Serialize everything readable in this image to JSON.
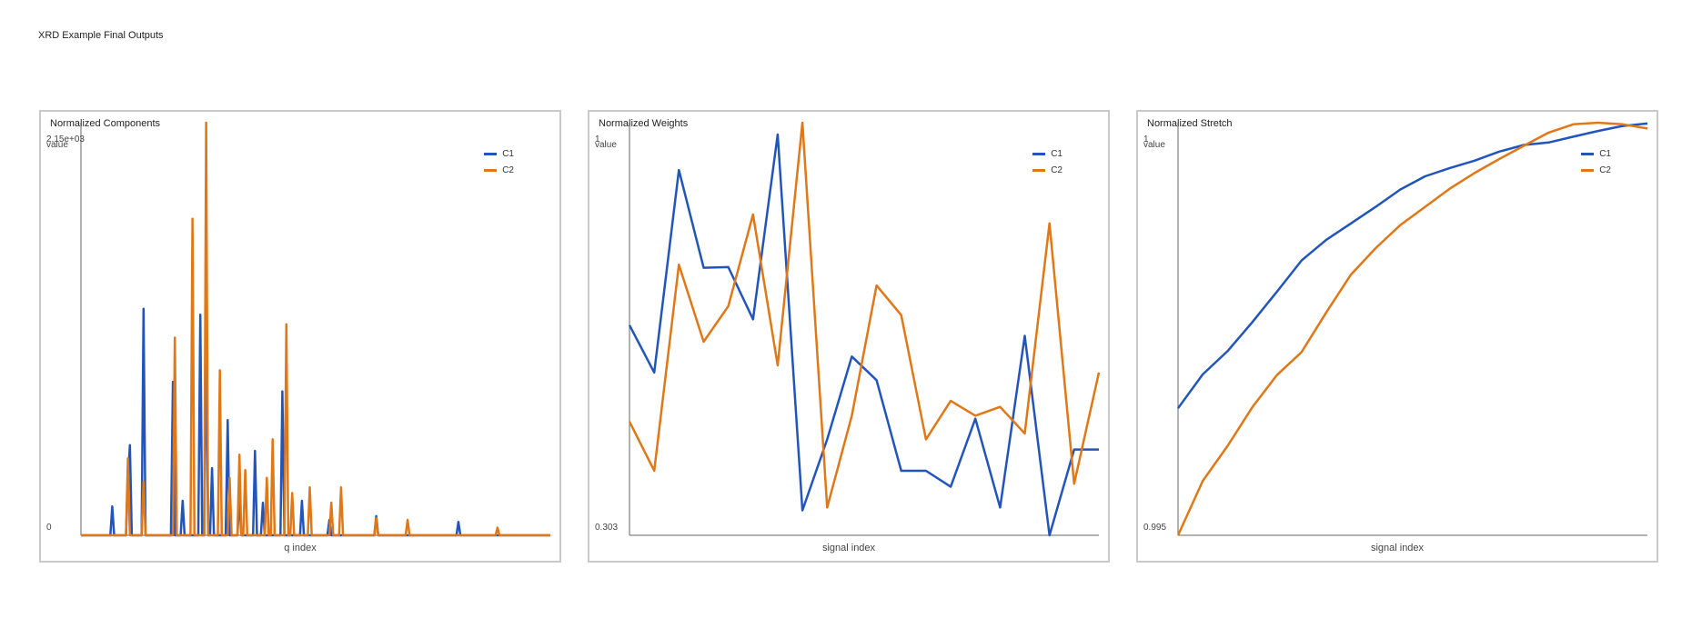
{
  "page_title": "XRD Example Final Outputs",
  "colors": {
    "C1": "#2255bb",
    "C2": "#e07818",
    "axis": "#666666",
    "border": "#c9c9c9"
  },
  "chart_data": [
    {
      "type": "line",
      "title": "Normalized Components",
      "xlabel": "q index",
      "ylabel": "value",
      "y_tick_labels": [
        "0",
        "2.15e+03"
      ],
      "ylim": [
        0,
        2150
      ],
      "xlim": [
        0,
        120
      ],
      "legend": "top-right",
      "grid": false,
      "series": [
        {
          "name": "C1",
          "points": [
            [
              0,
              0
            ],
            [
              7.5,
              0
            ],
            [
              8,
              150
            ],
            [
              8.5,
              0
            ],
            [
              11.5,
              0
            ],
            [
              12,
              300
            ],
            [
              12.5,
              470
            ],
            [
              13,
              0
            ],
            [
              15.5,
              0
            ],
            [
              16,
              1180
            ],
            [
              16.5,
              0
            ],
            [
              23,
              0
            ],
            [
              23.5,
              800
            ],
            [
              24,
              0
            ],
            [
              25.5,
              0
            ],
            [
              26,
              180
            ],
            [
              26.5,
              0
            ],
            [
              30,
              0
            ],
            [
              30.5,
              1150
            ],
            [
              31,
              0
            ],
            [
              31.5,
              0
            ],
            [
              32,
              1120
            ],
            [
              32.5,
              0
            ],
            [
              33,
              0
            ],
            [
              33.5,
              350
            ],
            [
              34,
              0
            ],
            [
              37,
              0
            ],
            [
              37.5,
              600
            ],
            [
              38,
              0
            ],
            [
              40,
              0
            ],
            [
              40.5,
              200
            ],
            [
              41,
              0
            ],
            [
              44,
              0
            ],
            [
              44.5,
              440
            ],
            [
              45,
              0
            ],
            [
              46,
              0
            ],
            [
              46.5,
              170
            ],
            [
              47,
              0
            ],
            [
              51,
              0
            ],
            [
              51.5,
              750
            ],
            [
              52,
              0
            ],
            [
              56,
              0
            ],
            [
              56.5,
              180
            ],
            [
              57,
              0
            ],
            [
              63,
              0
            ],
            [
              63.5,
              80
            ],
            [
              64,
              0
            ],
            [
              75,
              0
            ],
            [
              75.5,
              100
            ],
            [
              76,
              0
            ],
            [
              96,
              0
            ],
            [
              96.5,
              70
            ],
            [
              97,
              0
            ],
            [
              120,
              0
            ]
          ]
        },
        {
          "name": "C2",
          "points": [
            [
              0,
              0
            ],
            [
              11.5,
              0
            ],
            [
              12,
              400
            ],
            [
              12.5,
              0
            ],
            [
              15.5,
              0
            ],
            [
              16,
              280
            ],
            [
              16.5,
              0
            ],
            [
              23.5,
              0
            ],
            [
              24,
              1030
            ],
            [
              24.5,
              0
            ],
            [
              28,
              0
            ],
            [
              28.5,
              1650
            ],
            [
              29,
              0
            ],
            [
              31.5,
              0
            ],
            [
              32,
              2150
            ],
            [
              32.5,
              0
            ],
            [
              35,
              0
            ],
            [
              35.5,
              860
            ],
            [
              36,
              0
            ],
            [
              37.5,
              0
            ],
            [
              38,
              300
            ],
            [
              38.5,
              0
            ],
            [
              40,
              0
            ],
            [
              40.5,
              420
            ],
            [
              41,
              0
            ],
            [
              41.5,
              0
            ],
            [
              42,
              340
            ],
            [
              42.5,
              0
            ],
            [
              47,
              0
            ],
            [
              47.5,
              300
            ],
            [
              48,
              0
            ],
            [
              48.5,
              0
            ],
            [
              49,
              500
            ],
            [
              49.5,
              0
            ],
            [
              52,
              0
            ],
            [
              52.5,
              1100
            ],
            [
              53,
              0
            ],
            [
              53.5,
              0
            ],
            [
              54,
              220
            ],
            [
              54.5,
              0
            ],
            [
              58,
              0
            ],
            [
              58.5,
              250
            ],
            [
              59,
              0
            ],
            [
              63.5,
              0
            ],
            [
              64,
              170
            ],
            [
              64.5,
              0
            ],
            [
              66,
              0
            ],
            [
              66.5,
              250
            ],
            [
              67,
              0
            ],
            [
              75,
              0
            ],
            [
              75.5,
              90
            ],
            [
              76,
              0
            ],
            [
              83,
              0
            ],
            [
              83.5,
              80
            ],
            [
              84,
              0
            ],
            [
              106,
              0
            ],
            [
              106.5,
              40
            ],
            [
              107,
              0
            ],
            [
              120,
              0
            ]
          ]
        }
      ]
    },
    {
      "type": "line",
      "title": "Normalized Weights",
      "xlabel": "signal index",
      "ylabel": "value",
      "y_tick_labels": [
        "0.303",
        "1"
      ],
      "ylim": [
        0.303,
        1
      ],
      "xlim": [
        0,
        19
      ],
      "legend": "top-right",
      "grid": false,
      "series": [
        {
          "name": "C1",
          "x": [
            0,
            1,
            2,
            3,
            4,
            5,
            6,
            7,
            8,
            9,
            10,
            11,
            12,
            13,
            14,
            15,
            16,
            17,
            18,
            19
          ],
          "values": [
            0.658,
            0.578,
            0.92,
            0.755,
            0.756,
            0.668,
            0.98,
            0.345,
            0.465,
            0.605,
            0.565,
            0.412,
            0.412,
            0.385,
            0.5,
            0.35,
            0.64,
            0.303,
            0.448,
            0.448
          ]
        },
        {
          "name": "C2",
          "x": [
            0,
            1,
            2,
            3,
            4,
            5,
            6,
            7,
            8,
            9,
            10,
            11,
            12,
            13,
            14,
            15,
            16,
            17,
            18,
            19
          ],
          "values": [
            0.495,
            0.412,
            0.76,
            0.63,
            0.69,
            0.845,
            0.59,
            1.0,
            0.35,
            0.505,
            0.725,
            0.675,
            0.465,
            0.53,
            0.505,
            0.52,
            0.475,
            0.83,
            0.39,
            0.578
          ]
        }
      ]
    },
    {
      "type": "line",
      "title": "Normalized Stretch",
      "xlabel": "signal index",
      "ylabel": "value",
      "y_tick_labels": [
        "0.995",
        "1"
      ],
      "ylim": [
        0.995,
        1
      ],
      "xlim": [
        0,
        19
      ],
      "legend": "top-right",
      "grid": false,
      "series": [
        {
          "name": "C1",
          "x": [
            0,
            1,
            2,
            3,
            4,
            5,
            6,
            7,
            8,
            9,
            10,
            11,
            12,
            13,
            14,
            15,
            16,
            17,
            18,
            19
          ],
          "values": [
            0.99654,
            0.99695,
            0.99723,
            0.99758,
            0.99795,
            0.99833,
            0.99858,
            0.99878,
            0.99898,
            0.99919,
            0.99935,
            0.99945,
            0.99954,
            0.99965,
            0.99973,
            0.99976,
            0.99983,
            0.9999,
            0.99996,
            0.99999
          ]
        },
        {
          "name": "C2",
          "x": [
            0,
            1,
            2,
            3,
            4,
            5,
            6,
            7,
            8,
            9,
            10,
            11,
            12,
            13,
            14,
            15,
            16,
            17,
            18,
            19
          ],
          "values": [
            0.995,
            0.99566,
            0.99608,
            0.99655,
            0.99694,
            0.99722,
            0.9977,
            0.99816,
            0.99848,
            0.99876,
            0.99898,
            0.9992,
            0.99939,
            0.99956,
            0.99972,
            0.99988,
            0.99998,
            1.0,
            0.99998,
            0.99993
          ]
        }
      ]
    }
  ]
}
